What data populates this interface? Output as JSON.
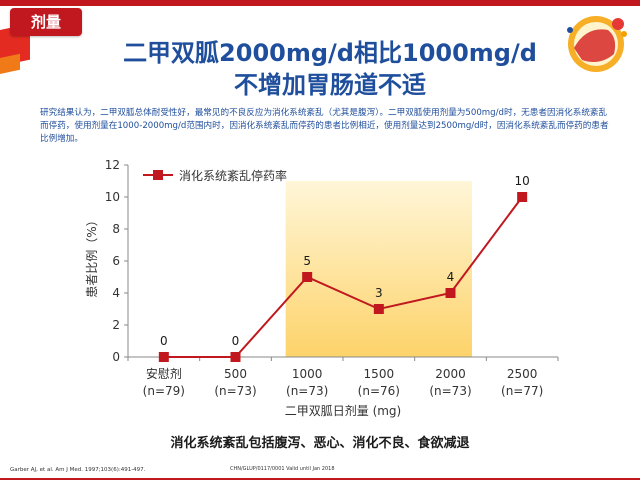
{
  "badge": "剂量",
  "title": {
    "line1": "二甲双胍2000mg/d相比1000mg/d",
    "line2": "不增加胃肠道不适"
  },
  "paragraph": "研究结果认为，二甲双胍总体耐受性好，最常见的不良反应为消化系统紊乱（尤其是腹泻）。二甲双胍使用剂量为500mg/d时，无患者因消化系统紊乱而停药，使用剂量在1000-2000mg/d范围内时，因消化系统紊乱而停药的患者比例相近，使用剂量达到2500mg/d时，因消化系统紊乱而停药的患者比例增加。",
  "chart_data": {
    "type": "line",
    "categories": [
      "安慰剂\n(n=79)",
      "500\n(n=73)",
      "1000\n(n=73)",
      "1500\n(n=76)",
      "2000\n(n=73)",
      "2500\n(n=77)"
    ],
    "category_top": [
      "安慰剂",
      "500",
      "1000",
      "1500",
      "2000",
      "2500"
    ],
    "category_bottom": [
      "(n=79)",
      "(n=73)",
      "(n=73)",
      "(n=76)",
      "(n=73)",
      "(n=77)"
    ],
    "series": [
      {
        "name": "消化系统紊乱停药率",
        "values": [
          0,
          0,
          5,
          3,
          4,
          10
        ]
      }
    ],
    "ylabel": "患者比例（%）",
    "xlabel": "二甲双胍日剂量 (mg)",
    "ylim": [
      0,
      12
    ],
    "yticks": [
      0,
      2,
      4,
      6,
      8,
      10,
      12
    ],
    "highlight_range": [
      "1000\n(n=73)",
      "2000\n(n=73)"
    ],
    "series_color": "#c0181e",
    "highlight_color": "#fdd36a",
    "legend_position": "top-left"
  },
  "bottom_note": "消化系统紊乱包括腹泻、恶心、消化不良、食欲减退",
  "reference": "Garber AJ, et al. Am J Med. 1997;103(6):491-497.",
  "code": "CHN/GLUP/0117/0001 Valid until Jan 2018",
  "colors": {
    "accent_red": "#c0181e",
    "title_blue": "#1f4e9c"
  },
  "icons": {
    "logo": "brand-logo-icon"
  }
}
